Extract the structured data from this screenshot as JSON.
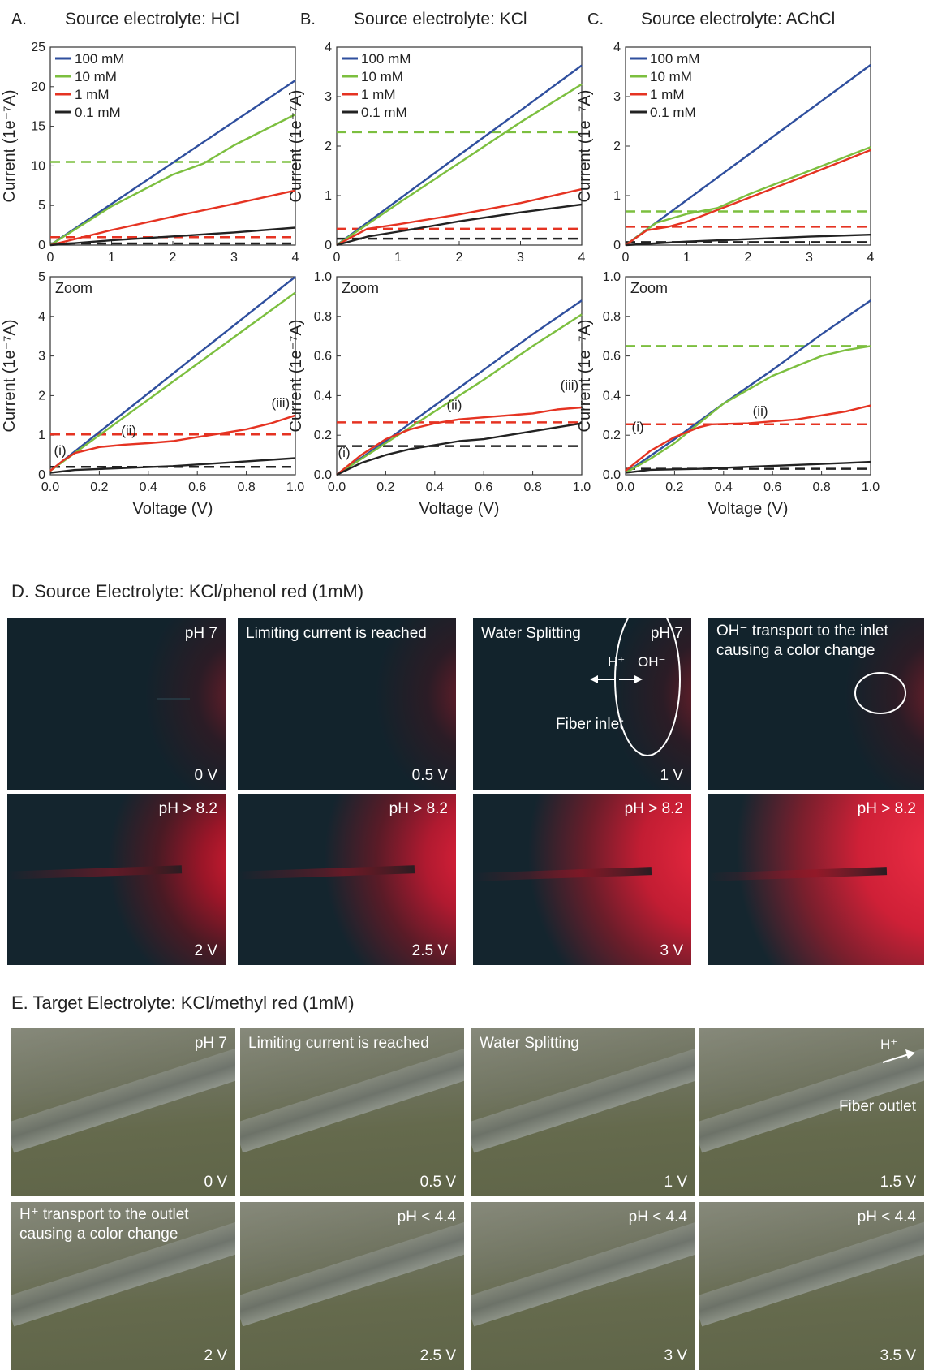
{
  "chart_data": [
    {
      "panel": "A.",
      "title": "Source electrolyte: HCl",
      "type": "line",
      "xlabel": "",
      "ylabel": "Current (1e⁻⁷A)",
      "xlim": [
        0,
        4
      ],
      "ylim": [
        0,
        25
      ],
      "xticks": [
        "0",
        "1",
        "2",
        "3",
        "4"
      ],
      "yticks": [
        "0",
        "5",
        "10",
        "15",
        "20",
        "25"
      ],
      "legend": "top-left",
      "series": [
        {
          "name": "100 mM",
          "color": "#2f4f9e",
          "x": [
            0,
            1,
            2,
            3,
            4
          ],
          "y": [
            0,
            5.2,
            10.4,
            15.6,
            20.8
          ]
        },
        {
          "name": "10 mM",
          "color": "#7cbf3f",
          "x": [
            0,
            1,
            2,
            2.5,
            3,
            4
          ],
          "y": [
            0,
            4.9,
            8.9,
            10.3,
            12.6,
            16.5
          ]
        },
        {
          "name": "1 mM",
          "color": "#e53322",
          "x": [
            0,
            1,
            2,
            3,
            4
          ],
          "y": [
            0,
            1.9,
            3.6,
            5.2,
            6.9
          ]
        },
        {
          "name": "0.1 mM",
          "color": "#222222",
          "x": [
            0,
            1,
            2,
            3,
            4
          ],
          "y": [
            0,
            0.6,
            1.1,
            1.6,
            2.2
          ]
        }
      ],
      "hlines": [
        {
          "y": 10.5,
          "color": "#7cbf3f"
        },
        {
          "y": 1.0,
          "color": "#e53322"
        },
        {
          "y": 0.2,
          "color": "#222222"
        }
      ]
    },
    {
      "panel": "B.",
      "title": "Source electrolyte: KCl",
      "type": "line",
      "xlabel": "",
      "ylabel": "Current (1e⁻⁷A)",
      "xlim": [
        0,
        4
      ],
      "ylim": [
        0,
        4
      ],
      "xticks": [
        "0",
        "1",
        "2",
        "3",
        "4"
      ],
      "yticks": [
        "0",
        "1",
        "2",
        "3",
        "4"
      ],
      "legend": "top-left",
      "series": [
        {
          "name": "100 mM",
          "color": "#2f4f9e",
          "x": [
            0,
            1,
            2,
            3,
            4
          ],
          "y": [
            0,
            0.91,
            1.82,
            2.72,
            3.63
          ]
        },
        {
          "name": "10 mM",
          "color": "#7cbf3f",
          "x": [
            0,
            1,
            2,
            3,
            4
          ],
          "y": [
            0,
            0.84,
            1.66,
            2.48,
            3.25
          ]
        },
        {
          "name": "1 mM",
          "color": "#e53322",
          "x": [
            0,
            0.5,
            1,
            2,
            3,
            4
          ],
          "y": [
            0,
            0.33,
            0.42,
            0.62,
            0.85,
            1.13
          ]
        },
        {
          "name": "0.1 mM",
          "color": "#222222",
          "x": [
            0,
            0.5,
            1,
            2,
            3,
            4
          ],
          "y": [
            0,
            0.17,
            0.27,
            0.48,
            0.66,
            0.82
          ]
        }
      ],
      "hlines": [
        {
          "y": 2.28,
          "color": "#7cbf3f"
        },
        {
          "y": 0.33,
          "color": "#e53322"
        },
        {
          "y": 0.13,
          "color": "#222222"
        }
      ]
    },
    {
      "panel": "C.",
      "title": "Source electrolyte: AChCl",
      "type": "line",
      "xlabel": "",
      "ylabel": "Current (1e⁻⁷A)",
      "xlim": [
        0,
        4
      ],
      "ylim": [
        0,
        4
      ],
      "xticks": [
        "0",
        "1",
        "2",
        "3",
        "4"
      ],
      "yticks": [
        "0",
        "1",
        "2",
        "3",
        "4"
      ],
      "legend": "top-left",
      "series": [
        {
          "name": "100 mM",
          "color": "#2f4f9e",
          "x": [
            0,
            1,
            2,
            3,
            4
          ],
          "y": [
            0,
            0.91,
            1.82,
            2.73,
            3.64
          ]
        },
        {
          "name": "10 mM",
          "color": "#7cbf3f",
          "x": [
            0,
            0.5,
            1,
            1.5,
            2,
            3,
            4
          ],
          "y": [
            0,
            0.45,
            0.63,
            0.75,
            1.02,
            1.5,
            1.98
          ]
        },
        {
          "name": "1 mM",
          "color": "#e53322",
          "x": [
            0,
            0.35,
            0.7,
            1,
            2,
            3,
            4
          ],
          "y": [
            0,
            0.3,
            0.37,
            0.47,
            0.95,
            1.43,
            1.92
          ]
        },
        {
          "name": "0.1 mM",
          "color": "#222222",
          "x": [
            0,
            1,
            2,
            3,
            4
          ],
          "y": [
            0,
            0.07,
            0.12,
            0.17,
            0.21
          ]
        }
      ],
      "hlines": [
        {
          "y": 0.68,
          "color": "#7cbf3f"
        },
        {
          "y": 0.37,
          "color": "#e53322"
        },
        {
          "y": 0.06,
          "color": "#222222"
        }
      ]
    },
    {
      "panel": "A zoom",
      "title": "Zoom",
      "type": "line",
      "xlabel": "Voltage (V)",
      "ylabel": "Current (1e⁻⁷A)",
      "xlim": [
        0,
        1
      ],
      "ylim": [
        0,
        5
      ],
      "xticks": [
        "0.0",
        "0.2",
        "0.4",
        "0.6",
        "0.8",
        "1.0"
      ],
      "yticks": [
        "0",
        "1",
        "2",
        "3",
        "4",
        "5"
      ],
      "series": [
        {
          "name": "100 mM",
          "color": "#2f4f9e",
          "x": [
            0,
            0.2,
            0.4,
            0.6,
            0.8,
            1.0
          ],
          "y": [
            0.1,
            1.08,
            2.06,
            3.04,
            4.02,
            5.0
          ]
        },
        {
          "name": "10 mM",
          "color": "#7cbf3f",
          "x": [
            0,
            0.2,
            0.4,
            0.6,
            0.8,
            1.0
          ],
          "y": [
            0.1,
            1.0,
            1.9,
            2.8,
            3.7,
            4.6
          ]
        },
        {
          "name": "1 mM",
          "color": "#e53322",
          "x": [
            0,
            0.05,
            0.1,
            0.2,
            0.3,
            0.4,
            0.5,
            0.6,
            0.7,
            0.8,
            0.9,
            1.0
          ],
          "y": [
            0.1,
            0.35,
            0.55,
            0.7,
            0.76,
            0.8,
            0.85,
            0.95,
            1.05,
            1.15,
            1.3,
            1.5
          ]
        },
        {
          "name": "0.1 mM",
          "color": "#222222",
          "x": [
            0,
            0.1,
            0.3,
            0.5,
            0.7,
            1.0
          ],
          "y": [
            0.05,
            0.12,
            0.17,
            0.22,
            0.3,
            0.42
          ]
        }
      ],
      "hlines": [
        {
          "y": 1.02,
          "color": "#e53322"
        },
        {
          "y": 0.2,
          "color": "#222222"
        }
      ],
      "annotations": [
        {
          "text": "(i)",
          "x": 0.04,
          "y": 0.5
        },
        {
          "text": "(ii)",
          "x": 0.32,
          "y": 1.0
        },
        {
          "text": "(iii)",
          "x": 0.94,
          "y": 1.7
        }
      ]
    },
    {
      "panel": "B zoom",
      "title": "Zoom",
      "type": "line",
      "xlabel": "Voltage (V)",
      "ylabel": "Current (1e⁻⁷A)",
      "xlim": [
        0,
        1
      ],
      "ylim": [
        0,
        1
      ],
      "xticks": [
        "0.0",
        "0.2",
        "0.4",
        "0.6",
        "0.8",
        "1.0"
      ],
      "yticks": [
        "0.0",
        "0.2",
        "0.4",
        "0.6",
        "0.8",
        "1.0"
      ],
      "series": [
        {
          "name": "100 mM",
          "color": "#2f4f9e",
          "x": [
            0,
            0.2,
            0.4,
            0.6,
            0.8,
            1.0
          ],
          "y": [
            0,
            0.17,
            0.35,
            0.53,
            0.71,
            0.88
          ]
        },
        {
          "name": "10 mM",
          "color": "#7cbf3f",
          "x": [
            0,
            0.2,
            0.4,
            0.6,
            0.8,
            1.0
          ],
          "y": [
            0,
            0.16,
            0.32,
            0.48,
            0.65,
            0.81
          ]
        },
        {
          "name": "1 mM",
          "color": "#e53322",
          "x": [
            0,
            0.1,
            0.2,
            0.3,
            0.4,
            0.5,
            0.6,
            0.7,
            0.8,
            0.9,
            1.0
          ],
          "y": [
            0,
            0.1,
            0.18,
            0.23,
            0.26,
            0.28,
            0.29,
            0.3,
            0.31,
            0.33,
            0.34
          ]
        },
        {
          "name": "0.1 mM",
          "color": "#222222",
          "x": [
            0,
            0.1,
            0.2,
            0.3,
            0.4,
            0.5,
            0.6,
            0.7,
            0.8,
            0.9,
            1.0
          ],
          "y": [
            0,
            0.06,
            0.1,
            0.13,
            0.15,
            0.17,
            0.18,
            0.2,
            0.22,
            0.24,
            0.26
          ]
        }
      ],
      "hlines": [
        {
          "y": 0.265,
          "color": "#e53322"
        },
        {
          "y": 0.145,
          "color": "#222222"
        }
      ],
      "annotations": [
        {
          "text": "(i)",
          "x": 0.03,
          "y": 0.09
        },
        {
          "text": "(ii)",
          "x": 0.48,
          "y": 0.33
        },
        {
          "text": "(iii)",
          "x": 0.95,
          "y": 0.43
        }
      ]
    },
    {
      "panel": "C zoom",
      "title": "Zoom",
      "type": "line",
      "xlabel": "Voltage (V)",
      "ylabel": "Current (1e⁻⁷A)",
      "xlim": [
        0,
        1
      ],
      "ylim": [
        0,
        1
      ],
      "xticks": [
        "0.0",
        "0.2",
        "0.4",
        "0.6",
        "0.8",
        "1.0"
      ],
      "yticks": [
        "0.0",
        "0.2",
        "0.4",
        "0.6",
        "0.8",
        "1.0"
      ],
      "series": [
        {
          "name": "100 mM",
          "color": "#2f4f9e",
          "x": [
            0,
            0.2,
            0.4,
            0.6,
            0.8,
            1.0
          ],
          "y": [
            0.01,
            0.18,
            0.36,
            0.53,
            0.71,
            0.88
          ]
        },
        {
          "name": "10 mM",
          "color": "#7cbf3f",
          "x": [
            0,
            0.1,
            0.2,
            0.3,
            0.4,
            0.5,
            0.6,
            0.7,
            0.8,
            0.9,
            1.0
          ],
          "y": [
            0.01,
            0.08,
            0.16,
            0.26,
            0.36,
            0.43,
            0.5,
            0.55,
            0.6,
            0.63,
            0.65
          ]
        },
        {
          "name": "1 mM",
          "color": "#e53322",
          "x": [
            0,
            0.1,
            0.2,
            0.3,
            0.35,
            0.5,
            0.7,
            0.8,
            0.9,
            1.0
          ],
          "y": [
            0.02,
            0.12,
            0.19,
            0.24,
            0.255,
            0.26,
            0.28,
            0.3,
            0.32,
            0.35
          ]
        },
        {
          "name": "0.1 mM",
          "color": "#222222",
          "x": [
            0,
            0.1,
            0.3,
            0.5,
            0.7,
            0.9,
            1.0
          ],
          "y": [
            0.01,
            0.025,
            0.03,
            0.04,
            0.05,
            0.06,
            0.065
          ]
        }
      ],
      "hlines": [
        {
          "y": 0.65,
          "color": "#7cbf3f"
        },
        {
          "y": 0.255,
          "color": "#e53322"
        },
        {
          "y": 0.03,
          "color": "#222222"
        }
      ],
      "annotations": [
        {
          "text": "(i)",
          "x": 0.05,
          "y": 0.22
        },
        {
          "text": "(ii)",
          "x": 0.55,
          "y": 0.3
        }
      ]
    }
  ],
  "panel_zoom_label": "Zoom",
  "section_d": {
    "title": "D.  Source Electrolyte: KCl/phenol red (1mM)",
    "panels": [
      {
        "voltage": "0 V",
        "top_right": "pH 7",
        "top_left": ""
      },
      {
        "voltage": "0.5 V",
        "top_right": "",
        "top_left": "Limiting current is reached"
      },
      {
        "voltage": "1 V",
        "top_right": "pH 7",
        "top_left": "Water Splitting",
        "h_label": "H⁺",
        "oh_label": "OH⁻",
        "inlet_label": "Fiber inlet"
      },
      {
        "voltage": "",
        "top_right": "",
        "top_left_1": "OH⁻ transport to the inlet",
        "top_left_2": "causing a color change"
      },
      {
        "voltage": "2 V",
        "top_right": "pH > 8.2"
      },
      {
        "voltage": "2.5 V",
        "top_right": "pH > 8.2"
      },
      {
        "voltage": "3 V",
        "top_right": "pH > 8.2"
      },
      {
        "voltage": "",
        "top_right": "pH > 8.2"
      }
    ]
  },
  "section_e": {
    "title": "E.  Target Electrolyte: KCl/methyl red (1mM)",
    "panels": [
      {
        "voltage": "0 V",
        "top_right": "pH 7",
        "top_left": ""
      },
      {
        "voltage": "0.5 V",
        "top_left": "Limiting current is reached"
      },
      {
        "voltage": "1 V",
        "top_left": "Water Splitting"
      },
      {
        "voltage": "1.5 V",
        "h_label": "H⁺",
        "outlet_label": "Fiber outlet"
      },
      {
        "voltage": "2 V",
        "top_left_1": "H⁺ transport to the outlet",
        "top_left_2": "causing a color change"
      },
      {
        "voltage": "2.5 V",
        "top_right": "pH < 4.4"
      },
      {
        "voltage": "3 V",
        "top_right": "pH < 4.4"
      },
      {
        "voltage": "3.5 V",
        "top_right": "pH < 4.4"
      }
    ]
  }
}
